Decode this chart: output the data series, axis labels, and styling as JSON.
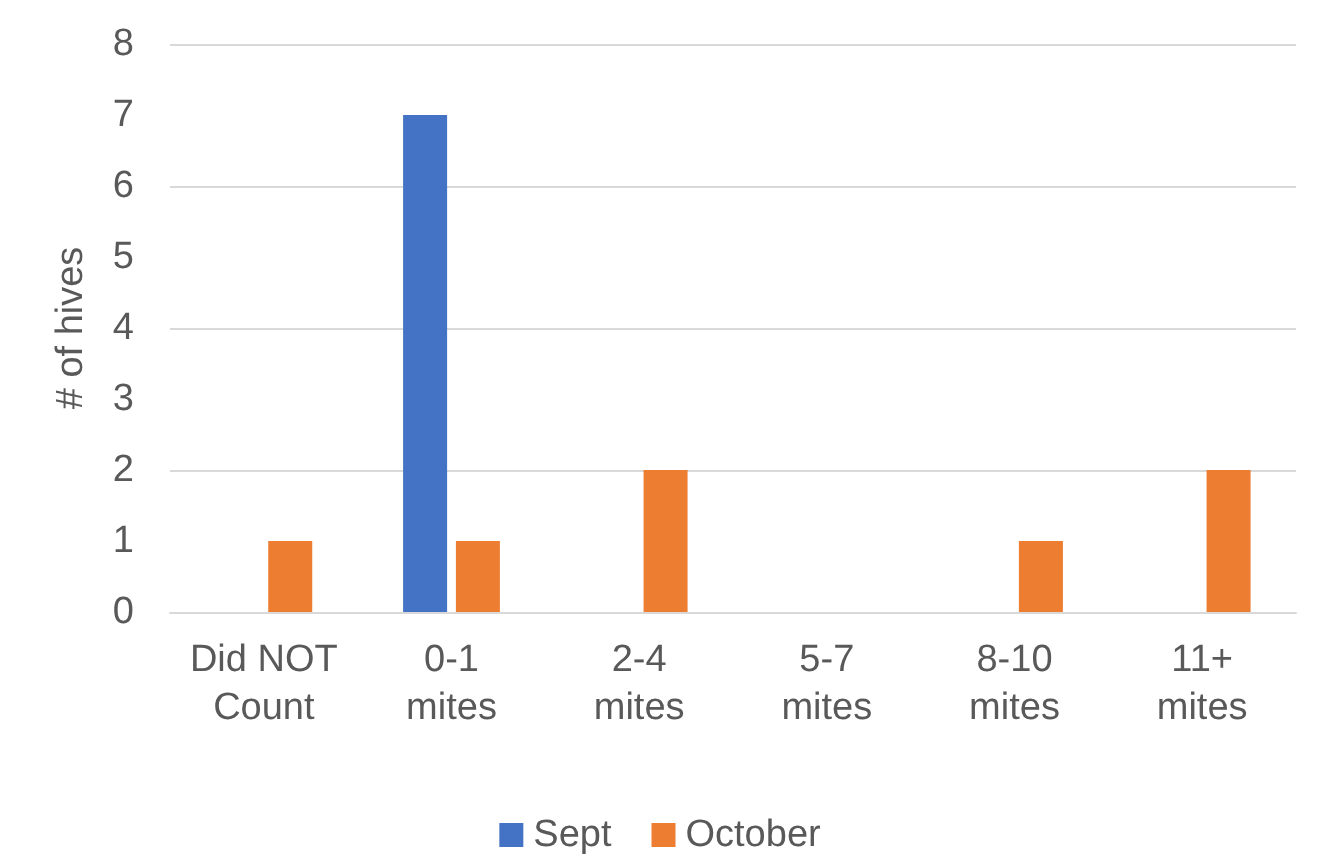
{
  "chart_data": {
    "type": "bar",
    "ylabel": "# of hives",
    "categories": [
      "Did NOT Count",
      "0-1 mites",
      "2-4 mites",
      "5-7 mites",
      "8-10 mites",
      "11+ mites"
    ],
    "series": [
      {
        "name": "Sept",
        "color": "#4472c4",
        "values": [
          0,
          7,
          0,
          0,
          0,
          0
        ]
      },
      {
        "name": "October",
        "color": "#ed7d31",
        "values": [
          1,
          1,
          2,
          0,
          1,
          2
        ]
      }
    ],
    "ylim": [
      0,
      8
    ],
    "yticks": [
      0,
      1,
      2,
      3,
      4,
      5,
      6,
      7,
      8
    ],
    "grid": "y",
    "legend": "bottom"
  }
}
